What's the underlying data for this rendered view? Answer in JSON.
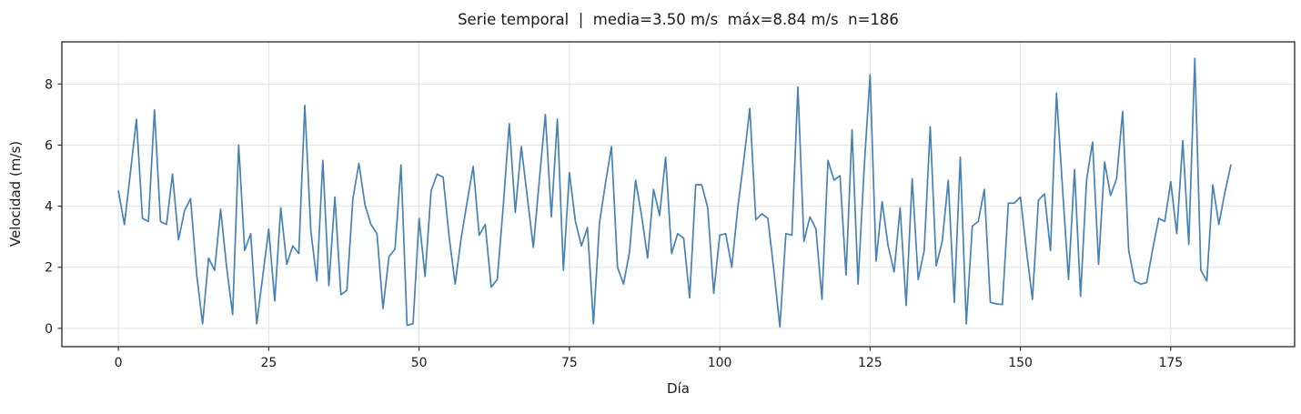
{
  "figure": {
    "background": "#ffffff",
    "text_color": "#1a1a1a"
  },
  "chart_data": {
    "type": "line",
    "title": "Serie temporal  |  media=3.50 m/s  máx=8.84 m/s  n=186",
    "xlabel": "Día",
    "ylabel": "Velocidad (m/s)",
    "legend": null,
    "grid": true,
    "line_color": "#4682b4",
    "x_start": 0,
    "x_step": 1,
    "n_points": 186,
    "stats_shown_in_title": {
      "media_ms": 3.5,
      "max_ms": 8.84,
      "n": 186
    },
    "xticks": [
      0,
      25,
      50,
      75,
      100,
      125,
      150,
      175
    ],
    "yticks": [
      0,
      2,
      4,
      6,
      8
    ],
    "xlim": [
      -9.4,
      195.6
    ],
    "ylim": [
      -0.6,
      9.38
    ],
    "values": [
      4.5,
      3.4,
      5.1,
      6.85,
      3.6,
      3.5,
      7.15,
      3.5,
      3.4,
      5.05,
      2.9,
      3.85,
      4.25,
      1.8,
      0.15,
      2.3,
      1.9,
      3.9,
      2.0,
      0.45,
      6.0,
      2.55,
      3.1,
      0.15,
      1.7,
      3.25,
      0.9,
      3.95,
      2.1,
      2.7,
      2.45,
      7.3,
      3.2,
      1.55,
      5.5,
      1.4,
      4.3,
      1.1,
      1.25,
      4.25,
      5.4,
      4.05,
      3.4,
      3.1,
      0.65,
      2.35,
      2.6,
      5.35,
      0.1,
      0.15,
      3.6,
      1.7,
      4.5,
      5.05,
      4.95,
      3.0,
      1.45,
      2.95,
      4.15,
      5.3,
      3.05,
      3.4,
      1.35,
      1.6,
      4.0,
      6.7,
      3.8,
      5.95,
      4.3,
      2.65,
      4.85,
      7.0,
      3.65,
      6.85,
      1.9,
      5.1,
      3.5,
      2.7,
      3.3,
      0.15,
      3.45,
      4.75,
      5.95,
      2.0,
      1.45,
      2.5,
      4.85,
      3.7,
      2.3,
      4.55,
      3.7,
      5.6,
      2.45,
      3.1,
      2.95,
      1.0,
      4.7,
      4.7,
      3.95,
      1.15,
      3.05,
      3.1,
      2.0,
      3.95,
      5.5,
      7.2,
      3.55,
      3.75,
      3.6,
      1.9,
      0.05,
      3.1,
      3.05,
      7.9,
      2.85,
      3.65,
      3.25,
      0.95,
      5.5,
      4.85,
      5.0,
      1.75,
      6.5,
      1.45,
      5.2,
      8.3,
      2.2,
      4.15,
      2.7,
      1.85,
      3.95,
      0.75,
      4.9,
      1.6,
      2.55,
      6.6,
      2.05,
      2.85,
      4.85,
      0.85,
      5.6,
      0.15,
      3.35,
      3.5,
      4.55,
      0.85,
      0.8,
      0.78,
      4.1,
      4.1,
      4.3,
      2.55,
      0.95,
      4.2,
      4.4,
      2.55,
      7.7,
      4.6,
      1.6,
      5.2,
      1.05,
      4.85,
      6.1,
      2.1,
      5.45,
      4.35,
      4.9,
      7.1,
      2.55,
      1.55,
      1.45,
      1.5,
      2.6,
      3.6,
      3.5,
      4.8,
      3.1,
      6.15,
      2.75,
      8.84,
      1.9,
      1.55,
      4.7,
      3.4,
      4.45,
      5.35
    ]
  }
}
